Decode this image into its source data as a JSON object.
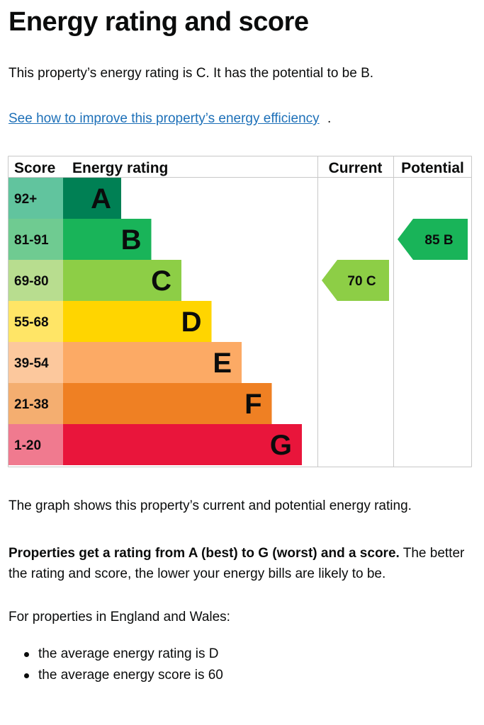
{
  "page": {
    "title": "Energy rating and score",
    "intro": "This property’s energy rating is C. It has the potential to be B.",
    "link_text": "See how to improve this property’s energy efficiency",
    "link_tail": ".",
    "graph_note": "The graph shows this property’s current and potential energy rating.",
    "rating_bold": "Properties get a rating from A (best) to G (worst) and a score.",
    "rating_rest": " The better the rating and score, the lower your energy bills are likely to be.",
    "region_intro": "For properties in England and Wales:",
    "bullets": [
      "the average energy rating is D",
      "the average energy score is 60"
    ]
  },
  "chart_data": {
    "type": "table",
    "headers": {
      "score": "Score",
      "rating": "Energy rating",
      "current": "Current",
      "potential": "Potential"
    },
    "bands": [
      {
        "score": "92+",
        "letter": "A",
        "color": "#008054",
        "score_color": "#61c49e"
      },
      {
        "score": "81-91",
        "letter": "B",
        "color": "#19b459",
        "score_color": "#6fcb91"
      },
      {
        "score": "69-80",
        "letter": "C",
        "color": "#8dce46",
        "score_color": "#b8dd8f"
      },
      {
        "score": "55-68",
        "letter": "D",
        "color": "#ffd500",
        "score_color": "#ffe566"
      },
      {
        "score": "39-54",
        "letter": "E",
        "color": "#fcaa65",
        "score_color": "#fcc89d"
      },
      {
        "score": "21-38",
        "letter": "F",
        "color": "#ef8023",
        "score_color": "#f4ae70"
      },
      {
        "score": "1-20",
        "letter": "G",
        "color": "#e9153b",
        "score_color": "#f07a8f"
      }
    ],
    "current": {
      "value": 70,
      "letter": "C",
      "label": "70 C",
      "color": "#8dce46"
    },
    "potential": {
      "value": 85,
      "letter": "B",
      "label": "85 B",
      "color": "#19b459"
    }
  }
}
